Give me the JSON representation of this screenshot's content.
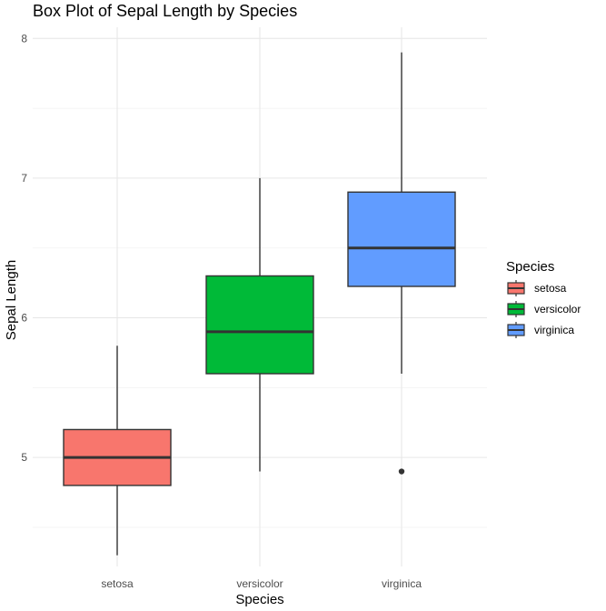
{
  "chart_data": {
    "type": "box",
    "title": "Box Plot of Sepal Length by Species",
    "xlabel": "Species",
    "ylabel": "Sepal Length",
    "ylim": [
      4.22,
      8.08
    ],
    "yticks": [
      5,
      6,
      7,
      8
    ],
    "grid": true,
    "legend": {
      "title": "Species",
      "position": "right"
    },
    "categories": [
      "setosa",
      "versicolor",
      "virginica"
    ],
    "series": [
      {
        "name": "setosa",
        "color": "#F8766D",
        "min": 4.3,
        "q1": 4.8,
        "median": 5.0,
        "q3": 5.2,
        "max": 5.8,
        "outliers": []
      },
      {
        "name": "versicolor",
        "color": "#00BA38",
        "min": 4.9,
        "q1": 5.6,
        "median": 5.9,
        "q3": 6.3,
        "max": 7.0,
        "outliers": []
      },
      {
        "name": "virginica",
        "color": "#619CFF",
        "min": 5.6,
        "q1": 6.225,
        "median": 6.5,
        "q3": 6.9,
        "max": 7.9,
        "outliers": [
          4.9
        ]
      }
    ]
  }
}
